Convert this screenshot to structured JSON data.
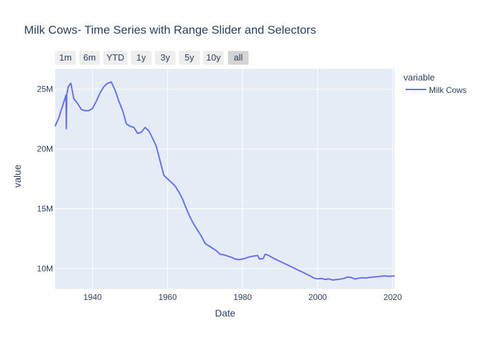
{
  "chart_data": {
    "type": "line",
    "title": "Milk Cows- Time Series with Range Slider and Selectors",
    "xlabel": "Date",
    "ylabel": "value",
    "xlim": [
      1930,
      2020.5
    ],
    "ylim": [
      8300000,
      26700000
    ],
    "x_ticks": [
      1940,
      1960,
      1980,
      2000,
      2020
    ],
    "y_ticks": [
      10000000,
      15000000,
      20000000,
      25000000
    ],
    "x_tick_labels": [
      "1940",
      "1960",
      "1980",
      "2000",
      "2020"
    ],
    "y_tick_labels": [
      "10M",
      "15M",
      "20M",
      "25M"
    ],
    "grid": true,
    "legend": {
      "title": "variable",
      "position": "top-right"
    },
    "range_selector": {
      "buttons": [
        "1m",
        "6m",
        "YTD",
        "1y",
        "3y",
        "5y",
        "10y",
        "all"
      ],
      "active": "all"
    },
    "series": [
      {
        "name": "Milk Cows",
        "color": "#636efa",
        "points": [
          [
            1930,
            21900000
          ],
          [
            1931,
            22600000
          ],
          [
            1932,
            23600000
          ],
          [
            1932.9,
            24500000
          ],
          [
            1933.0,
            21700000
          ],
          [
            1933.1,
            24500000
          ],
          [
            1933.5,
            25200000
          ],
          [
            1934.2,
            25500000
          ],
          [
            1935,
            24200000
          ],
          [
            1936,
            23800000
          ],
          [
            1937,
            23300000
          ],
          [
            1938,
            23200000
          ],
          [
            1939,
            23200000
          ],
          [
            1940,
            23400000
          ],
          [
            1941,
            24000000
          ],
          [
            1942,
            24700000
          ],
          [
            1943,
            25200000
          ],
          [
            1944,
            25500000
          ],
          [
            1945,
            25600000
          ],
          [
            1946,
            24900000
          ],
          [
            1947,
            24000000
          ],
          [
            1948,
            23200000
          ],
          [
            1949,
            22100000
          ],
          [
            1950,
            21900000
          ],
          [
            1951,
            21800000
          ],
          [
            1952,
            21300000
          ],
          [
            1953,
            21400000
          ],
          [
            1954,
            21800000
          ],
          [
            1955,
            21500000
          ],
          [
            1956,
            20900000
          ],
          [
            1957,
            20200000
          ],
          [
            1958,
            19000000
          ],
          [
            1959,
            17800000
          ],
          [
            1960,
            17500000
          ],
          [
            1961,
            17200000
          ],
          [
            1962,
            16900000
          ],
          [
            1963,
            16400000
          ],
          [
            1964,
            15800000
          ],
          [
            1965,
            15000000
          ],
          [
            1966,
            14300000
          ],
          [
            1967,
            13700000
          ],
          [
            1968,
            13200000
          ],
          [
            1969,
            12700000
          ],
          [
            1970,
            12100000
          ],
          [
            1971,
            11900000
          ],
          [
            1972,
            11700000
          ],
          [
            1973,
            11500000
          ],
          [
            1974,
            11200000
          ],
          [
            1975,
            11150000
          ],
          [
            1976,
            11050000
          ],
          [
            1977,
            10950000
          ],
          [
            1978,
            10800000
          ],
          [
            1979,
            10750000
          ],
          [
            1980,
            10800000
          ],
          [
            1981,
            10900000
          ],
          [
            1982,
            11000000
          ],
          [
            1983,
            11050000
          ],
          [
            1984,
            11100000
          ],
          [
            1984.5,
            10800000
          ],
          [
            1985.5,
            10850000
          ],
          [
            1986,
            11200000
          ],
          [
            1987,
            11100000
          ],
          [
            1988,
            10900000
          ],
          [
            1990,
            10600000
          ],
          [
            1992,
            10300000
          ],
          [
            1994,
            10000000
          ],
          [
            1996,
            9700000
          ],
          [
            1998,
            9400000
          ],
          [
            1999,
            9200000
          ],
          [
            2000,
            9150000
          ],
          [
            2001,
            9180000
          ],
          [
            2002,
            9100000
          ],
          [
            2003,
            9140000
          ],
          [
            2004,
            9050000
          ],
          [
            2005,
            9080000
          ],
          [
            2006,
            9120000
          ],
          [
            2007,
            9180000
          ],
          [
            2008,
            9300000
          ],
          [
            2009,
            9250000
          ],
          [
            2010,
            9120000
          ],
          [
            2011,
            9200000
          ],
          [
            2012,
            9230000
          ],
          [
            2013,
            9220000
          ],
          [
            2014,
            9280000
          ],
          [
            2015,
            9300000
          ],
          [
            2016,
            9330000
          ],
          [
            2017,
            9370000
          ],
          [
            2018,
            9390000
          ],
          [
            2019,
            9360000
          ],
          [
            2020.5,
            9390000
          ]
        ]
      }
    ]
  }
}
